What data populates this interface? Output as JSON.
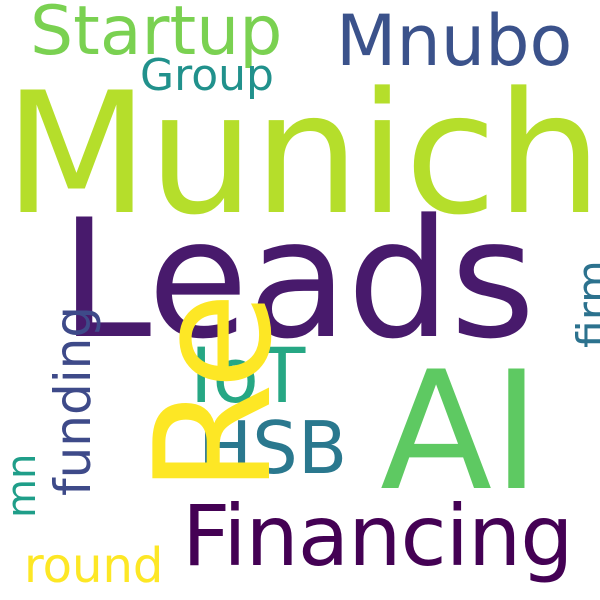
{
  "words": {
    "munich": {
      "text": "Munich",
      "color": "#b5de2b"
    },
    "leads": {
      "text": "Leads",
      "color": "#481a6c"
    },
    "ai": {
      "text": "AI",
      "color": "#5ec962"
    },
    "financing": {
      "text": "Financing",
      "color": "#440154"
    },
    "startup": {
      "text": "Startup",
      "color": "#7ad151"
    },
    "mnubo": {
      "text": "Mnubo",
      "color": "#3b528b"
    },
    "group": {
      "text": "Group",
      "color": "#21918c"
    },
    "iot": {
      "text": "IoT",
      "color": "#26a784"
    },
    "hsb": {
      "text": "HSB",
      "color": "#2a788e"
    },
    "round": {
      "text": "round",
      "color": "#fde725"
    },
    "re": {
      "text": "Re",
      "color": "#fde725"
    },
    "funding": {
      "text": "funding",
      "color": "#3e4a89"
    },
    "mn": {
      "text": "mn",
      "color": "#1f9e89"
    },
    "firm": {
      "text": "firm",
      "color": "#2c728e"
    }
  }
}
